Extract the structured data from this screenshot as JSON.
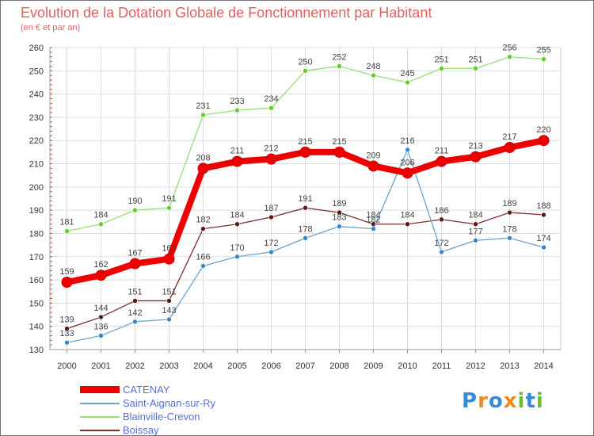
{
  "title": "Evolution de la Dotation Globale de Fonctionnement par Habitant",
  "subtitle": "(en € et par an)",
  "logo": {
    "text": "Proxiti",
    "letters": [
      "P",
      "r",
      "o",
      "x",
      "i",
      "t",
      "i"
    ],
    "colors": [
      "#3a8ad8",
      "#f08a1c",
      "#3a8ad8",
      "#f08a1c",
      "#6cbf2a",
      "#3a8ad8",
      "#6cbf2a"
    ]
  },
  "chart_data": {
    "type": "line",
    "title": "Evolution de la Dotation Globale de Fonctionnement par Habitant",
    "ylabel": "(en € et par an)",
    "xlabel": "",
    "ylim": [
      130,
      260
    ],
    "yticks": [
      130,
      140,
      150,
      160,
      170,
      180,
      190,
      200,
      210,
      220,
      230,
      240,
      250,
      260
    ],
    "x": [
      "2000",
      "2001",
      "2002",
      "2003",
      "2004",
      "2005",
      "2006",
      "2007",
      "2008",
      "2009",
      "2010",
      "2011",
      "2012",
      "2013",
      "2014"
    ],
    "grid": true,
    "series": [
      {
        "name": "Blainville-Crevon",
        "color": "#99dd77",
        "marker": "#66cc33",
        "values": [
          181,
          184,
          190,
          191,
          231,
          233,
          234,
          250,
          252,
          248,
          245,
          251,
          251,
          256,
          255
        ]
      },
      {
        "name": "Boissay",
        "color": "#7a3030",
        "marker": "#5a1a1a",
        "values": [
          139,
          144,
          151,
          151,
          182,
          184,
          187,
          191,
          189,
          184,
          184,
          186,
          184,
          189,
          188
        ]
      },
      {
        "name": "Saint-Aignan-sur-Ry",
        "color": "#6aa2cc",
        "marker": "#3a86c6",
        "values": [
          133,
          136,
          142,
          143,
          166,
          170,
          172,
          178,
          183,
          182,
          216,
          172,
          177,
          178,
          174
        ]
      },
      {
        "name": "CATENAY",
        "color": "#ee0000",
        "marker": "#ee0000",
        "values": [
          159,
          162,
          167,
          169,
          208,
          211,
          212,
          215,
          215,
          209,
          206,
          211,
          213,
          217,
          220
        ]
      }
    ],
    "legend": [
      {
        "name": "CATENAY",
        "color": "#ee0000"
      },
      {
        "name": "Saint-Aignan-sur-Ry",
        "color": "#6aa2cc"
      },
      {
        "name": "Blainville-Crevon",
        "color": "#99dd77"
      },
      {
        "name": "Boissay",
        "color": "#7a3030"
      }
    ]
  }
}
